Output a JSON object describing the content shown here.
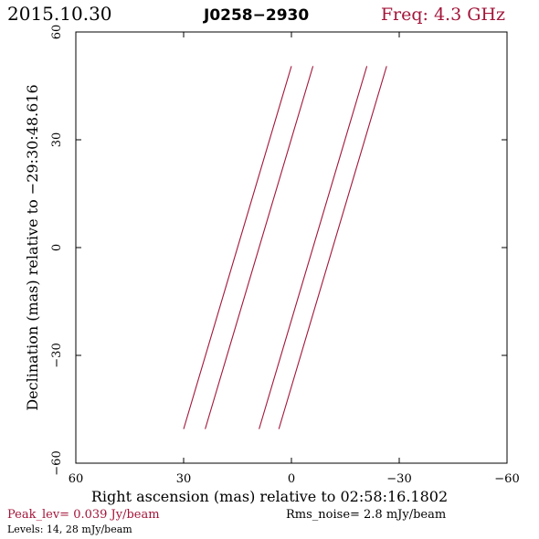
{
  "header": {
    "date": "2015.10.30",
    "source": "J0258−2930",
    "freq": "Freq: 4.3 GHz"
  },
  "colors": {
    "accent": "#a3153a",
    "axis": "#000000"
  },
  "chart_data": {
    "type": "line",
    "xlabel": "Right ascension (mas) relative to 02:58:16.1802",
    "ylabel": "Declination (mas) relative to −29:30:48.616",
    "xlim": [
      60,
      -60
    ],
    "ylim": [
      -60,
      60
    ],
    "xticks": [
      60,
      30,
      0,
      -30,
      -60
    ],
    "yticks": [
      -60,
      -30,
      0,
      30,
      60
    ],
    "xtick_labels": [
      "60",
      "30",
      "0",
      "−30",
      "−60"
    ],
    "ytick_labels": [
      "−60",
      "−30",
      "0",
      "30",
      "60"
    ],
    "series": [
      {
        "x": [
          30,
          0
        ],
        "y": [
          -50.5,
          50.5
        ]
      },
      {
        "x": [
          24,
          -6
        ],
        "y": [
          -50.5,
          50.5
        ]
      },
      {
        "x": [
          9,
          -21
        ],
        "y": [
          -50.5,
          50.5
        ]
      },
      {
        "x": [
          3.5,
          -26.5
        ],
        "y": [
          -50.5,
          50.5
        ]
      }
    ],
    "grid": false
  },
  "footer": {
    "peak": "Peak_lev=  0.039 Jy/beam",
    "rms": "Rms_noise=  2.8 mJy/beam",
    "levels": "Levels:  14,  28 mJy/beam"
  }
}
